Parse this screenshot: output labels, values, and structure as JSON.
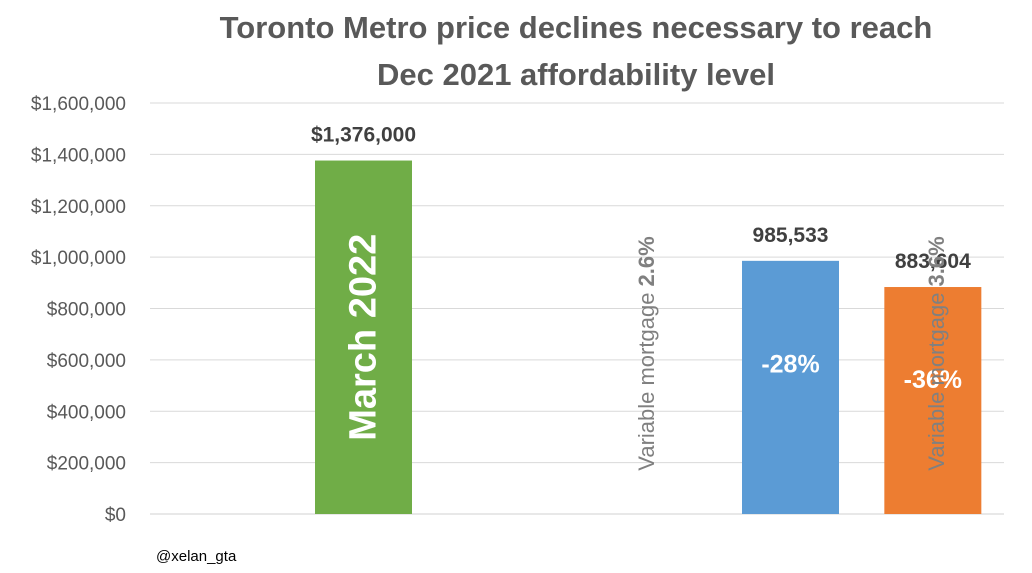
{
  "chart_data": {
    "type": "bar",
    "title_lines": [
      "Toronto Metro price declines necessary to reach",
      "Dec 2021 affordability level"
    ],
    "xlabel": "",
    "ylabel": "",
    "ylim": [
      0,
      1600000
    ],
    "y_ticks": [
      0,
      200000,
      400000,
      600000,
      800000,
      1000000,
      1200000,
      1400000,
      1600000
    ],
    "y_tick_labels": [
      "$0",
      "$200,000",
      "$400,000",
      "$600,000",
      "$800,000",
      "$1,000,000",
      "$1,200,000",
      "$1,400,000",
      "$1,600,000"
    ],
    "grid": true,
    "legend": "none",
    "bars": [
      {
        "value": 1376000,
        "value_label": "$1,376,000",
        "inner_label": "March 2022",
        "inner_vertical": true,
        "color": "#70ad47",
        "slot": 1
      },
      {
        "value": 985533,
        "value_label": "985,533",
        "inner_label": "-28%",
        "inner_vertical": false,
        "color": "#5b9bd5",
        "slot": 4
      },
      {
        "value": 883604,
        "value_label": "883,604",
        "inner_label": "-36%",
        "inner_vertical": false,
        "color": "#ed7d31",
        "slot": 5
      }
    ],
    "side_labels": [
      {
        "plain": "Variable mortgage ",
        "bold": "2.6%",
        "slot": 3.5
      },
      {
        "plain": "Variable mortgage ",
        "bold": "3.6%",
        "slot": 5.5
      }
    ]
  },
  "credit": "@xelan_gta"
}
